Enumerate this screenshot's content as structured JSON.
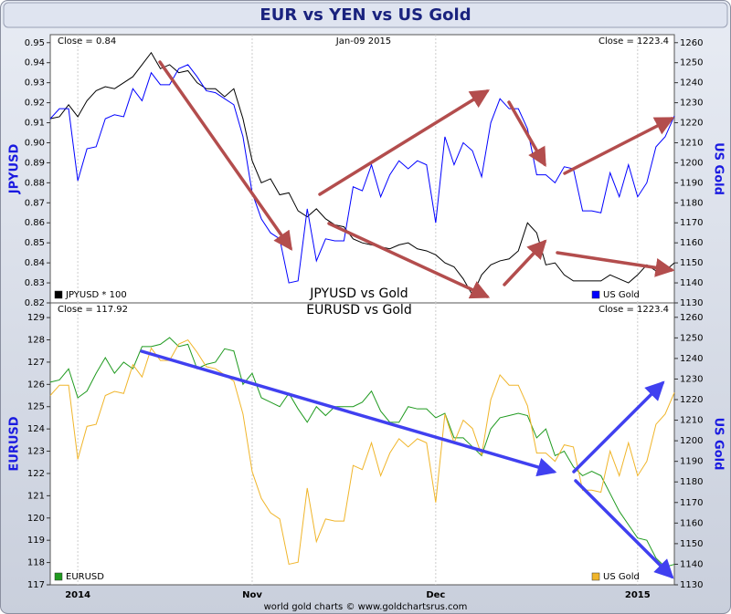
{
  "title": "EUR vs YEN vs US Gold",
  "source": "world gold charts © www.goldchartsrus.com",
  "chart_data": [
    {
      "type": "line",
      "title": "JPYUSD vs Gold",
      "ylabel": "JPYUSD",
      "y2label": "US Gold",
      "annotations": [
        "Close = 0.84",
        "Jan-09 2015",
        "Close = 1223.4"
      ],
      "ylim": [
        0.82,
        0.954
      ],
      "yticks": [
        0.82,
        0.83,
        0.84,
        0.85,
        0.86,
        0.87,
        0.88,
        0.89,
        {
          "value": 0.9,
          "label": "0.90"
        },
        0.91,
        0.92,
        0.93,
        0.94,
        0.95
      ],
      "y2lim": [
        1130,
        1264
      ],
      "y2ticks": [
        1130,
        1140,
        1150,
        1160,
        1170,
        1180,
        1190,
        1200,
        1210,
        1220,
        1230,
        1240,
        1250,
        1260
      ],
      "series": [
        {
          "name": "JPYUSD * 100",
          "color": "#000000",
          "axis": "y",
          "values": [
            0.912,
            0.913,
            0.919,
            0.913,
            0.921,
            0.926,
            0.928,
            0.927,
            0.93,
            0.933,
            0.939,
            0.945,
            0.937,
            0.939,
            0.935,
            0.936,
            0.93,
            0.927,
            0.927,
            0.923,
            0.927,
            0.912,
            0.891,
            0.88,
            0.882,
            0.874,
            0.875,
            0.866,
            0.863,
            0.867,
            0.862,
            0.859,
            0.858,
            0.852,
            0.85,
            0.849,
            0.848,
            0.847,
            0.849,
            0.85,
            0.847,
            0.846,
            0.844,
            0.84,
            0.838,
            0.832,
            0.824,
            0.834,
            0.839,
            0.841,
            0.842,
            0.846,
            0.86,
            0.855,
            0.839,
            0.84,
            0.834,
            0.831,
            0.831,
            0.831,
            0.831,
            0.834,
            0.832,
            0.83,
            0.834,
            0.839,
            0.836,
            0.836,
            0.84
          ]
        },
        {
          "name": "US Gold",
          "color": "#0000ff",
          "axis": "y2",
          "values": [
            1222,
            1227,
            1227,
            1191,
            1207,
            1208,
            1222,
            1224,
            1223,
            1237,
            1231,
            1245,
            1239,
            1239,
            1247,
            1249,
            1243,
            1236,
            1235,
            1232,
            1229,
            1213,
            1185,
            1172,
            1165,
            1162,
            1140,
            1141,
            1177,
            1151,
            1162,
            1161,
            1161,
            1188,
            1186,
            1199,
            1183,
            1194,
            1201,
            1197,
            1201,
            1199,
            1170,
            1213,
            1199,
            1210,
            1206,
            1193,
            1220,
            1232,
            1227,
            1227,
            1217,
            1194,
            1194,
            1190,
            1198,
            1197,
            1176,
            1176,
            1175,
            1195,
            1183,
            1199,
            1183,
            1190,
            1208,
            1213,
            1223.4
          ]
        }
      ]
    },
    {
      "type": "line",
      "title": "EURUSD vs Gold",
      "ylabel": "EURUSD",
      "y2label": "US Gold",
      "annotations": [
        "Close = 117.92",
        "Close = 1223.4"
      ],
      "categories": [
        null,
        null,
        null,
        "2014",
        null,
        null,
        null,
        null,
        null,
        null,
        null,
        null,
        null,
        null,
        null,
        null,
        null,
        null,
        null,
        null,
        null,
        null,
        "Nov",
        null,
        null,
        null,
        null,
        null,
        null,
        null,
        null,
        null,
        null,
        null,
        null,
        null,
        null,
        null,
        null,
        null,
        null,
        null,
        "Dec",
        null,
        null,
        null,
        null,
        null,
        null,
        null,
        null,
        null,
        null,
        null,
        null,
        null,
        null,
        null,
        null,
        null,
        null,
        null,
        null,
        null,
        "2015",
        null,
        null,
        null,
        null
      ],
      "ylim": [
        117,
        129.66
      ],
      "yticks": [
        117,
        118,
        119,
        120,
        121,
        122,
        123,
        124,
        125,
        126,
        127,
        128,
        129
      ],
      "y2lim": [
        1130,
        1267
      ],
      "y2ticks": [
        1130,
        1140,
        1150,
        1160,
        1170,
        1180,
        1190,
        1200,
        1210,
        1220,
        1230,
        1240,
        1250,
        1260
      ],
      "series": [
        {
          "name": "EURUSD",
          "color": "#1f9a1f",
          "axis": "y",
          "values": [
            126.1,
            126.2,
            126.7,
            125.4,
            125.7,
            126.5,
            127.2,
            126.5,
            127.0,
            126.7,
            127.7,
            127.7,
            127.8,
            128.1,
            127.7,
            127.8,
            126.7,
            126.9,
            127.0,
            127.6,
            127.5,
            126.0,
            126.5,
            125.4,
            125.2,
            125.0,
            125.6,
            124.9,
            124.3,
            125.0,
            124.6,
            125.0,
            125.0,
            125.0,
            125.2,
            125.7,
            124.8,
            124.3,
            124.3,
            125.0,
            124.9,
            124.9,
            124.5,
            124.7,
            123.6,
            123.6,
            123.2,
            122.8,
            124.0,
            124.5,
            124.6,
            124.7,
            124.6,
            123.6,
            124.0,
            122.8,
            123.0,
            122.3,
            121.9,
            122.1,
            121.9,
            121.1,
            120.3,
            119.7,
            119.1,
            119.0,
            118.2,
            117.8,
            117.92
          ]
        },
        {
          "name": "US Gold",
          "color": "#f0b52a",
          "axis": "y2",
          "values": [
            1222,
            1227,
            1227,
            1191,
            1207,
            1208,
            1222,
            1224,
            1223,
            1237,
            1231,
            1245,
            1239,
            1239,
            1247,
            1249,
            1243,
            1236,
            1235,
            1232,
            1229,
            1213,
            1185,
            1172,
            1165,
            1162,
            1140,
            1141,
            1177,
            1151,
            1162,
            1161,
            1161,
            1188,
            1186,
            1199,
            1183,
            1194,
            1201,
            1197,
            1201,
            1199,
            1170,
            1213,
            1199,
            1210,
            1206,
            1193,
            1220,
            1232,
            1227,
            1227,
            1217,
            1194,
            1194,
            1190,
            1198,
            1197,
            1176,
            1176,
            1175,
            1195,
            1183,
            1199,
            1183,
            1190,
            1208,
            1213,
            1223.4
          ]
        }
      ]
    }
  ]
}
